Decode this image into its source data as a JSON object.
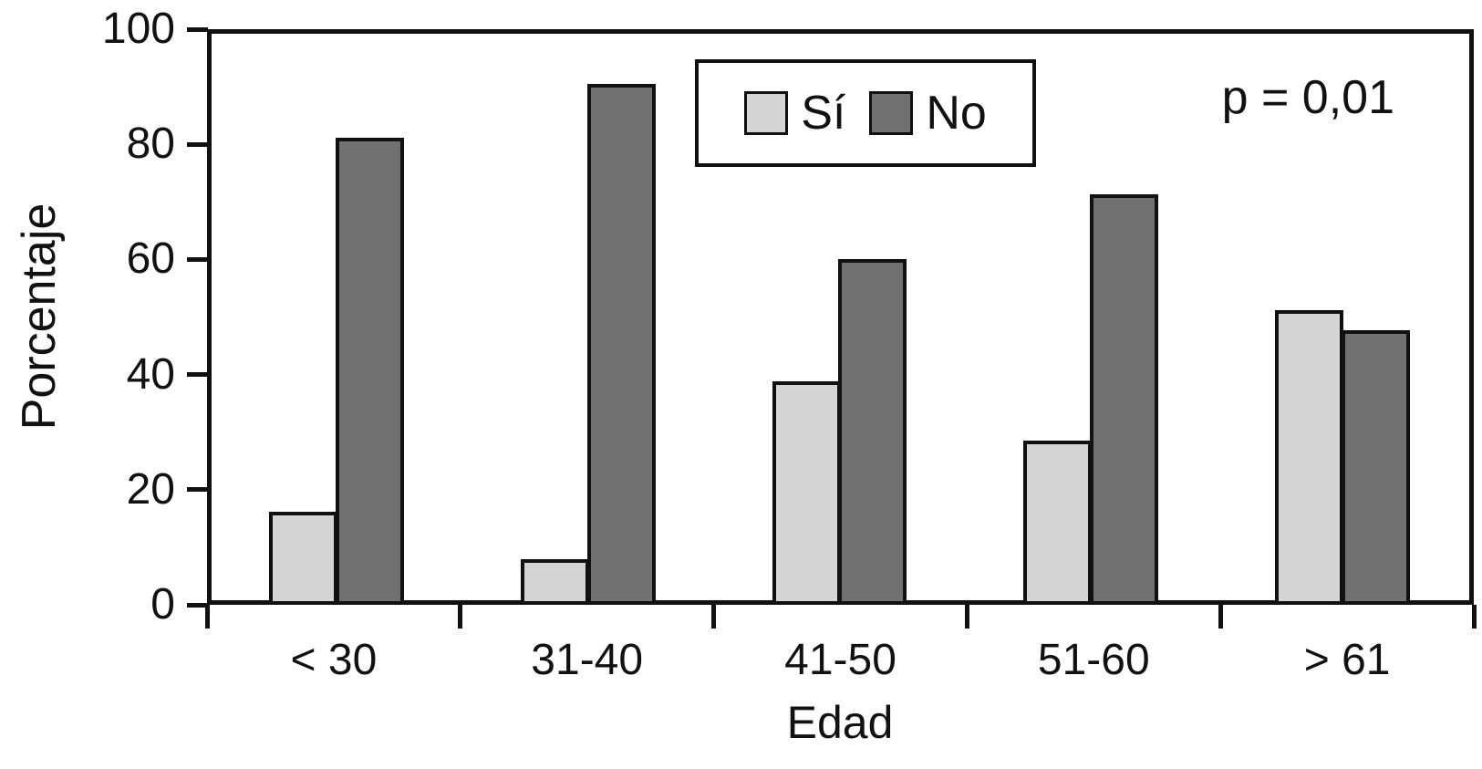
{
  "chart_data": {
    "type": "bar",
    "categories": [
      "< 30",
      "31-40",
      "41-50",
      "51-60",
      "> 61"
    ],
    "series": [
      {
        "name": "Sí",
        "color": "#d4d4d4",
        "values": [
          16.5,
          8,
          39.5,
          29,
          52
        ]
      },
      {
        "name": "No",
        "color": "#717171",
        "values": [
          82.5,
          92,
          61,
          72.5,
          48.5
        ]
      }
    ],
    "title": "",
    "xlabel": "Edad",
    "ylabel": "Porcentaje",
    "ylim": [
      0,
      100
    ],
    "yticks": [
      0,
      20,
      40,
      60,
      80,
      100
    ],
    "grid": false,
    "legend_position": "top-center",
    "annotation": "p = 0,01"
  },
  "legend": {
    "items": [
      {
        "label": "Sí",
        "color": "#d4d4d4"
      },
      {
        "label": "No",
        "color": "#717171"
      }
    ]
  },
  "colors": {
    "axis": "#111111",
    "background": "#ffffff",
    "series_si": "#d4d4d4",
    "series_no": "#717171"
  }
}
